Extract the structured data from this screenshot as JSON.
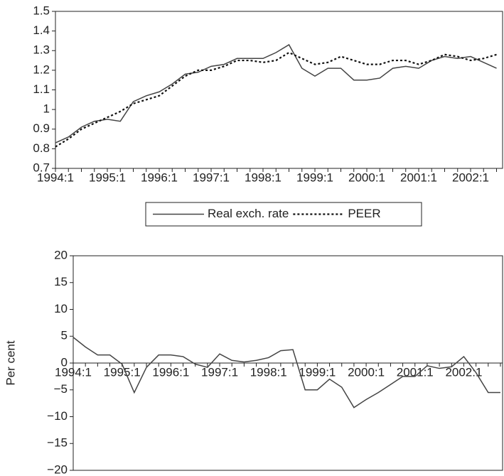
{
  "chart_data": [
    {
      "type": "line",
      "categories": [
        "1994:1",
        null,
        null,
        null,
        "1995:1",
        null,
        null,
        null,
        "1996:1",
        null,
        null,
        null,
        "1997:1",
        null,
        null,
        null,
        "1998:1",
        null,
        null,
        null,
        "1999:1",
        null,
        null,
        null,
        "2000:1",
        null,
        null,
        null,
        "2001:1",
        null,
        null,
        null,
        "2002:1",
        null,
        null
      ],
      "series": [
        {
          "name": "Real exch. rate",
          "color": "#444444",
          "linestyle": "solid",
          "values": [
            0.83,
            0.86,
            0.91,
            0.94,
            0.95,
            0.94,
            1.04,
            1.07,
            1.09,
            1.13,
            1.18,
            1.19,
            1.22,
            1.23,
            1.26,
            1.26,
            1.26,
            1.29,
            1.33,
            1.21,
            1.17,
            1.21,
            1.21,
            1.15,
            1.15,
            1.16,
            1.21,
            1.22,
            1.21,
            1.25,
            1.27,
            1.26,
            1.27,
            1.24,
            1.21
          ]
        },
        {
          "name": "PEER",
          "color": "#111111",
          "linestyle": "dotted",
          "values": [
            0.81,
            0.85,
            0.9,
            0.93,
            0.96,
            0.99,
            1.03,
            1.05,
            1.07,
            1.12,
            1.17,
            1.2,
            1.2,
            1.22,
            1.25,
            1.25,
            1.24,
            1.25,
            1.29,
            1.26,
            1.23,
            1.24,
            1.27,
            1.25,
            1.23,
            1.23,
            1.25,
            1.25,
            1.23,
            1.25,
            1.28,
            1.27,
            1.25,
            1.26,
            1.28
          ]
        }
      ],
      "ylim": [
        0.7,
        1.5
      ],
      "yticks": [
        0.7,
        0.8,
        0.9,
        1,
        1.1,
        1.2,
        1.3,
        1.4,
        1.5
      ],
      "legend": "bottom"
    },
    {
      "type": "line",
      "ylabel": "Per cent",
      "categories": [
        "1994:1",
        null,
        null,
        null,
        "1995:1",
        null,
        null,
        null,
        "1996:1",
        null,
        null,
        null,
        "1997:1",
        null,
        null,
        null,
        "1998:1",
        null,
        null,
        null,
        "1999:1",
        null,
        null,
        null,
        "2000:1",
        null,
        null,
        null,
        "2001:1",
        null,
        null,
        null,
        "2002:1",
        null,
        null,
        null
      ],
      "values": [
        4.8,
        3.0,
        1.5,
        1.5,
        -0.2,
        -5.5,
        -0.8,
        1.5,
        1.5,
        1.2,
        -0.2,
        -0.8,
        1.7,
        0.5,
        0.2,
        0.5,
        1.0,
        2.3,
        2.5,
        -5.0,
        -5.0,
        -3.0,
        -4.5,
        -8.3,
        -6.8,
        -5.5,
        -4.0,
        -2.5,
        -2.5,
        -0.5,
        -1.0,
        -0.7,
        1.2,
        -1.8,
        -5.5,
        -5.5
      ],
      "color": "#444444",
      "ylim": [
        -20,
        20
      ],
      "yticks": [
        {
          "value": -20,
          "label": "−20"
        },
        {
          "value": -15,
          "label": "−15"
        },
        {
          "value": -10,
          "label": "−10"
        },
        {
          "value": -5,
          "label": "−5"
        },
        0,
        5,
        10,
        15,
        20
      ]
    }
  ]
}
